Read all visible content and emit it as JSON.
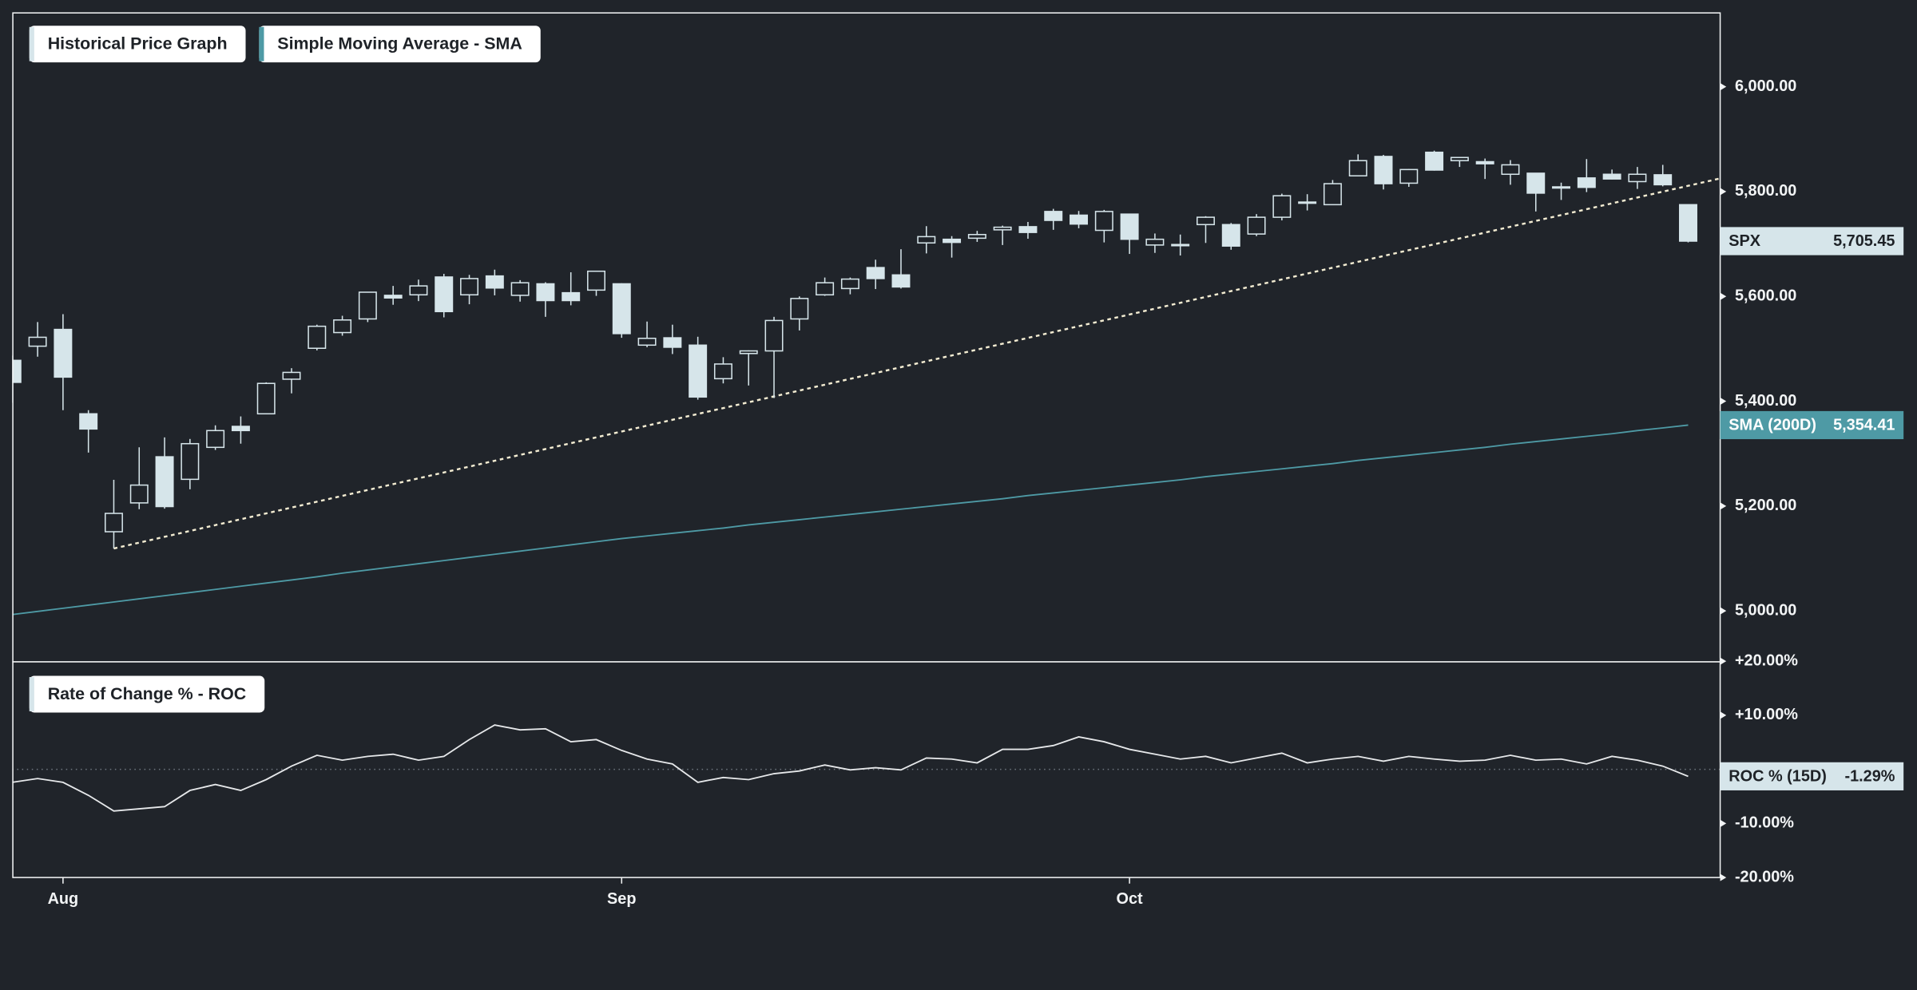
{
  "chart_data": [
    {
      "type": "candlestick",
      "categories": [
        null,
        null,
        "Aug",
        null,
        null,
        null,
        null,
        null,
        null,
        null,
        null,
        null,
        null,
        null,
        null,
        null,
        null,
        null,
        null,
        null,
        null,
        null,
        null,
        null,
        "Sep",
        null,
        null,
        null,
        null,
        null,
        null,
        null,
        null,
        null,
        null,
        null,
        null,
        null,
        null,
        null,
        null,
        null,
        null,
        null,
        "Oct",
        null,
        null,
        null,
        null,
        null,
        null,
        null,
        null,
        null,
        null,
        null,
        null,
        null,
        null,
        null,
        null,
        null,
        null,
        null,
        null,
        null,
        null
      ],
      "ohlc": {
        "name": "Historical Price Graph",
        "label": "SPX",
        "color": "#d6e5ea",
        "last_label": "5,705.45",
        "open": [
          5478,
          5505,
          5537,
          5376,
          5151,
          5206,
          5294,
          5251,
          5312,
          5352,
          5376,
          5442,
          5501,
          5531,
          5557,
          5602,
          5603,
          5637,
          5603,
          5639,
          5602,
          5624,
          5607,
          5612,
          5624,
          5507,
          5521,
          5507,
          5443,
          5491,
          5496,
          5557,
          5603,
          5615,
          5655,
          5641,
          5702,
          5709,
          5711,
          5727,
          5733,
          5762,
          5755,
          5726,
          5757,
          5698,
          5698,
          5737,
          5737,
          5719,
          5751,
          5778,
          5775,
          5830,
          5867,
          5816,
          5875,
          5859,
          5857,
          5833,
          5835,
          5809,
          5826,
          5833,
          5819,
          5832,
          5775
        ],
        "high": [
          5487,
          5551,
          5566,
          5383,
          5250,
          5312,
          5331,
          5328,
          5354,
          5371,
          5436,
          5463,
          5546,
          5563,
          5608,
          5620,
          5632,
          5643,
          5641,
          5651,
          5631,
          5627,
          5646,
          5648,
          5625,
          5552,
          5546,
          5523,
          5484,
          5497,
          5561,
          5600,
          5636,
          5636,
          5670,
          5690,
          5734,
          5715,
          5725,
          5735,
          5742,
          5767,
          5763,
          5765,
          5757,
          5720,
          5718,
          5753,
          5740,
          5757,
          5796,
          5795,
          5822,
          5871,
          5870,
          5843,
          5878,
          5866,
          5863,
          5860,
          5835,
          5817,
          5862,
          5842,
          5847,
          5851,
          5775
        ],
        "low": [
          5397,
          5485,
          5383,
          5302,
          5119,
          5194,
          5195,
          5232,
          5307,
          5319,
          5376,
          5415,
          5497,
          5525,
          5551,
          5584,
          5591,
          5560,
          5585,
          5602,
          5590,
          5561,
          5583,
          5601,
          5521,
          5503,
          5490,
          5403,
          5434,
          5430,
          5406,
          5535,
          5601,
          5604,
          5614,
          5615,
          5682,
          5674,
          5704,
          5698,
          5710,
          5727,
          5730,
          5703,
          5681,
          5683,
          5678,
          5702,
          5689,
          5715,
          5745,
          5764,
          5775,
          5830,
          5804,
          5809,
          5840,
          5847,
          5824,
          5813,
          5762,
          5784,
          5799,
          5823,
          5805,
          5810,
          5703
        ],
        "close": [
          5436,
          5522,
          5446,
          5347,
          5186,
          5240,
          5199,
          5319,
          5344,
          5344,
          5434,
          5455,
          5543,
          5555,
          5608,
          5597,
          5620,
          5571,
          5634,
          5616,
          5626,
          5592,
          5592,
          5648,
          5529,
          5520,
          5503,
          5408,
          5471,
          5496,
          5554,
          5596,
          5626,
          5633,
          5634,
          5618,
          5714,
          5703,
          5718,
          5732,
          5722,
          5745,
          5738,
          5762,
          5709,
          5709,
          5699,
          5751,
          5696,
          5751,
          5792,
          5780,
          5815,
          5859,
          5815,
          5842,
          5841,
          5865,
          5853,
          5851,
          5797,
          5809,
          5808,
          5824,
          5833,
          5813,
          5705.45
        ]
      },
      "series": [
        {
          "name": "Simple Moving Average - SMA",
          "label": "SMA (200D)",
          "color": "#4e9aa5",
          "last_label": "5,354.41",
          "values": [
            4993,
            4999,
            5005,
            5011,
            5017,
            5023,
            5029,
            5035,
            5041,
            5047,
            5053,
            5059,
            5065,
            5072,
            5078,
            5084,
            5090,
            5096,
            5102,
            5108,
            5114,
            5120,
            5126,
            5132,
            5138,
            5143,
            5148,
            5153,
            5158,
            5164,
            5169,
            5174,
            5179,
            5184,
            5189,
            5194,
            5199,
            5204,
            5209,
            5214,
            5220,
            5225,
            5230,
            5235,
            5240,
            5245,
            5250,
            5256,
            5261,
            5266,
            5271,
            5276,
            5281,
            5287,
            5292,
            5297,
            5302,
            5307,
            5312,
            5318,
            5323,
            5328,
            5333,
            5338,
            5344,
            5349,
            5354.41
          ]
        }
      ],
      "trendline": {
        "x": [
          4,
          66
        ],
        "values": [
          5119,
          5811
        ],
        "color": "#f3ecd2"
      },
      "ylim": [
        4904,
        6142
      ],
      "yticks": [
        {
          "value": 5000,
          "label": "5,000.00"
        },
        {
          "value": 5200,
          "label": "5,200.00"
        },
        {
          "value": 5400,
          "label": "5,400.00"
        },
        {
          "value": 5600,
          "label": "5,600.00"
        },
        {
          "value": 5800,
          "label": "5,800.00"
        },
        {
          "value": 6000,
          "label": "6,000.00"
        }
      ]
    },
    {
      "type": "line",
      "series": [
        {
          "name": "Rate of Change % - ROC",
          "label": "ROC % (15D)",
          "color": "#e6e8ea",
          "last_label": "-1.29%",
          "values": [
            -2.4,
            -1.7,
            -2.4,
            -4.8,
            -7.7,
            -7.3,
            -6.9,
            -3.9,
            -2.8,
            -3.9,
            -1.9,
            0.6,
            2.6,
            1.7,
            2.4,
            2.8,
            1.7,
            2.4,
            5.5,
            8.2,
            7.3,
            7.5,
            5.1,
            5.5,
            3.5,
            1.9,
            1.0,
            -2.4,
            -1.5,
            -1.9,
            -0.8,
            -0.3,
            0.8,
            -0.1,
            0.3,
            -0.1,
            2.1,
            1.9,
            1.2,
            3.7,
            3.7,
            4.4,
            6.0,
            5.1,
            3.7,
            2.8,
            1.9,
            2.4,
            1.2,
            2.1,
            3.0,
            1.2,
            1.9,
            2.4,
            1.5,
            2.4,
            1.9,
            1.5,
            1.7,
            2.6,
            1.7,
            1.9,
            1.0,
            2.4,
            1.7,
            0.6,
            -1.29
          ]
        }
      ],
      "reference_line": 0,
      "ylim": [
        -20,
        20
      ],
      "yticks": [
        {
          "value": -20,
          "label": "-20.00%"
        },
        {
          "value": -10,
          "label": "-10.00%"
        },
        {
          "value": 10,
          "label": "+10.00%"
        },
        {
          "value": 20,
          "label": "+20.00%"
        }
      ]
    }
  ]
}
